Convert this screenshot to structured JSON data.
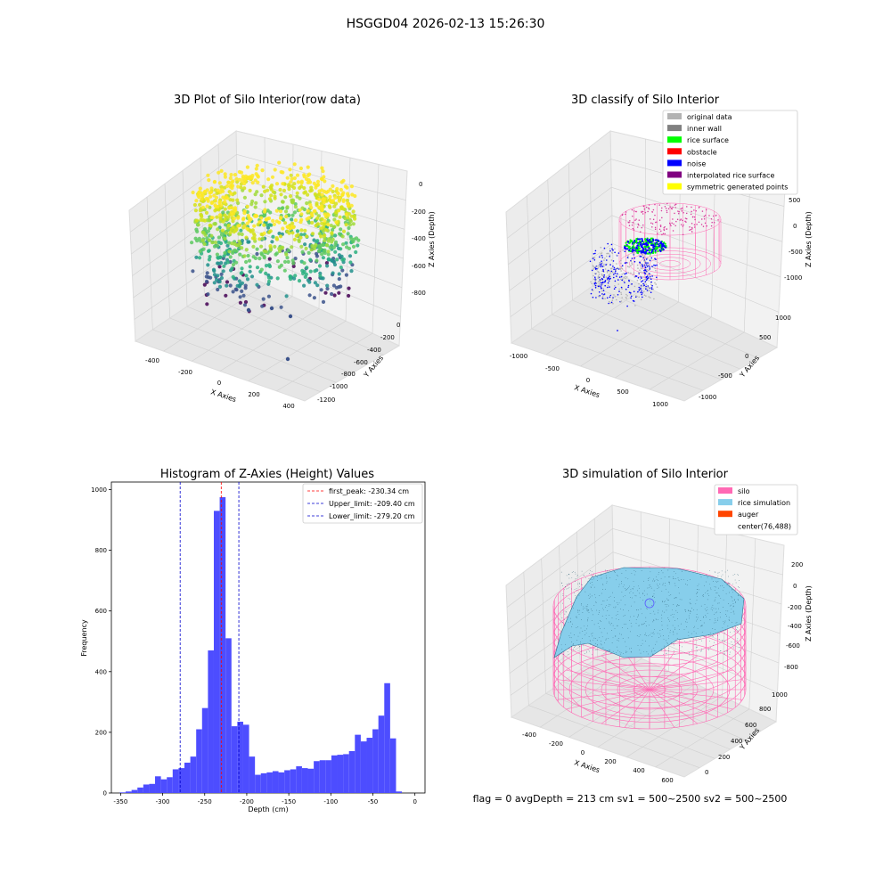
{
  "suptitle": "HSGGD04 2026-02-13 15:26:30",
  "footer": "flag = 0     avgDepth = 213 cm  sv1 = 500~2500  sv2 = 500~2500",
  "chart_data": [
    {
      "type": "scatter",
      "panel": "top-left",
      "title": "3D Plot of Silo Interior(row data)",
      "xlabel": "X Axies",
      "ylabel": "Y Axies",
      "zlabel": "Z Axies (Depth)",
      "x_ticks": [
        "-400",
        "-200",
        "0",
        "200",
        "400"
      ],
      "y_ticks": [
        "0",
        "-200",
        "-400",
        "-600",
        "-800",
        "-1000",
        "-1200"
      ],
      "z_ticks": [
        "0",
        "-200",
        "-400",
        "-600",
        "-800"
      ],
      "colormap": "viridis"
    },
    {
      "type": "scatter",
      "panel": "top-right",
      "title": "3D classify of Silo Interior",
      "xlabel": "X Axies",
      "ylabel": "Y Axies",
      "zlabel": "Z Axies (Depth)",
      "x_ticks": [
        "-1000",
        "-500",
        "0",
        "500",
        "1000"
      ],
      "y_ticks": [
        "1000",
        "500",
        "0",
        "-500",
        "-1000"
      ],
      "z_ticks": [
        "500",
        "0",
        "-500",
        "-1000"
      ],
      "legend": [
        {
          "label": "original data",
          "color": "#b3b3b3"
        },
        {
          "label": "inner wall",
          "color": "#808080"
        },
        {
          "label": "rice surface",
          "color": "#00ff00"
        },
        {
          "label": "obstacle",
          "color": "#ff0000"
        },
        {
          "label": "noise",
          "color": "#0000ff"
        },
        {
          "label": "interpolated rice surface",
          "color": "#800080"
        },
        {
          "label": "symmetric generated points",
          "color": "#ffff00"
        }
      ]
    },
    {
      "type": "bar",
      "panel": "bottom-left",
      "title": "Histogram of Z-Axies (Height) Values",
      "xlabel": "Depth (cm)",
      "ylabel": "Frequency",
      "xlim": [
        -361,
        12
      ],
      "ylim": [
        0,
        1025
      ],
      "bar_color": "#4d4dff",
      "x_ticks": [
        -350,
        -300,
        -250,
        -200,
        -150,
        -100,
        -50,
        0
      ],
      "y_ticks": [
        0,
        200,
        400,
        600,
        800,
        1000
      ],
      "bin_start": -351,
      "bin_width": 6.99,
      "values": [
        2,
        5,
        10,
        18,
        28,
        30,
        55,
        45,
        52,
        78,
        82,
        100,
        120,
        210,
        280,
        470,
        930,
        975,
        510,
        220,
        235,
        225,
        120,
        60,
        65,
        68,
        72,
        68,
        75,
        78,
        88,
        82,
        80,
        105,
        108,
        108,
        124,
        126,
        128,
        138,
        192,
        170,
        182,
        210,
        255,
        362,
        180,
        5
      ],
      "lines": [
        {
          "label": "first_peak: -230.34 cm",
          "x": -230.34,
          "color": "#ff0000"
        },
        {
          "label": "Upper_limit: -209.40 cm",
          "x": -209.4,
          "color": "#0000cc"
        },
        {
          "label": "Lower_limit: -279.20 cm",
          "x": -279.2,
          "color": "#0000cc"
        }
      ]
    },
    {
      "type": "surface",
      "panel": "bottom-right",
      "title": "3D simulation of Silo Interior",
      "xlabel": "X Axies",
      "ylabel": "Y Axies",
      "zlabel": "Z Axies (Depth)",
      "x_ticks": [
        "-400",
        "-200",
        "0",
        "200",
        "400",
        "600"
      ],
      "y_ticks": [
        "0",
        "200",
        "400",
        "600",
        "800",
        "1000"
      ],
      "z_ticks": [
        "200",
        "0",
        "-200",
        "-400",
        "-600",
        "-800"
      ],
      "legend": [
        {
          "label": "silo",
          "color": "#ff69b4"
        },
        {
          "label": "rice simulation",
          "color": "#87ceeb"
        },
        {
          "label": "auger",
          "color": "#ff4500"
        },
        {
          "label": "center(76,488)",
          "color": ""
        }
      ]
    }
  ]
}
